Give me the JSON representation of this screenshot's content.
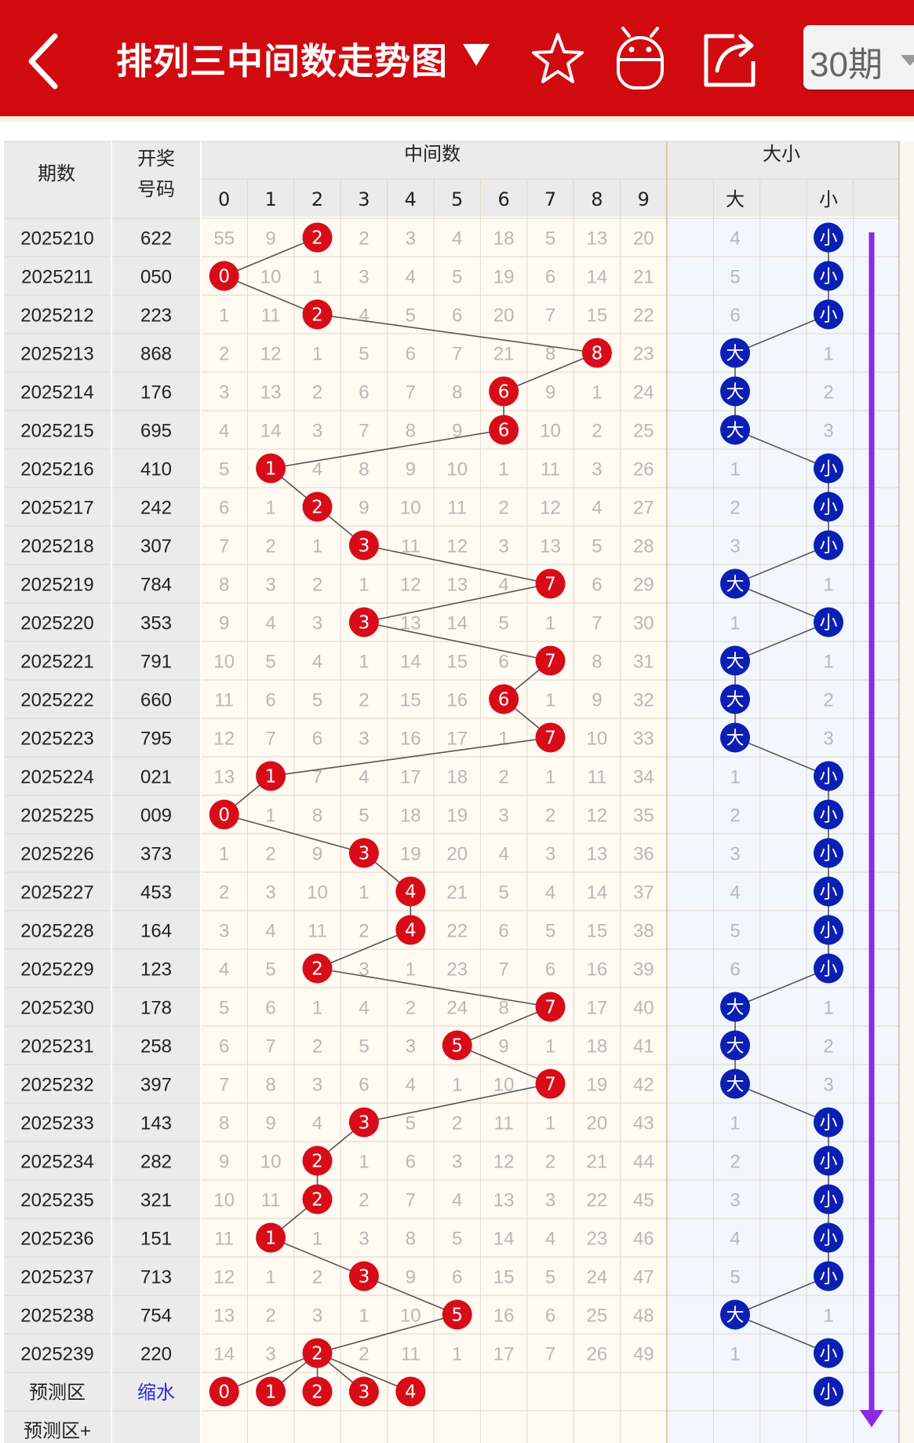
{
  "app": {
    "title": "排列三中间数走势图",
    "period_select": "30期"
  },
  "table_header": {
    "period_label": "期数",
    "draw_label_1": "开奖",
    "draw_label_2": "号码",
    "group_middle": "中间数",
    "group_size": "大小",
    "digit_cols": [
      "0",
      "1",
      "2",
      "3",
      "4",
      "5",
      "6",
      "7",
      "8",
      "9"
    ],
    "size_cols": [
      "大",
      "",
      "小"
    ]
  },
  "colors": {
    "brand_red": "#d10a0f",
    "ball_red": "#d80c18",
    "ball_blue": "#0b1fb5",
    "trend_arrow": "#8a2be2"
  },
  "rows": [
    {
      "period": "2025210",
      "draw": "622",
      "mid": 2,
      "size": "小",
      "digits": [
        "55",
        "9",
        "",
        "2",
        "3",
        "4",
        "18",
        "5",
        "13",
        "20"
      ],
      "big_miss": "4",
      "small_miss": ""
    },
    {
      "period": "2025211",
      "draw": "050",
      "mid": 0,
      "size": "小",
      "digits": [
        "",
        "10",
        "1",
        "3",
        "4",
        "5",
        "19",
        "6",
        "14",
        "21"
      ],
      "big_miss": "5",
      "small_miss": ""
    },
    {
      "period": "2025212",
      "draw": "223",
      "mid": 2,
      "size": "小",
      "digits": [
        "1",
        "11",
        "",
        "4",
        "5",
        "6",
        "20",
        "7",
        "15",
        "22"
      ],
      "big_miss": "6",
      "small_miss": ""
    },
    {
      "period": "2025213",
      "draw": "868",
      "mid": 8,
      "size": "大",
      "digits": [
        "2",
        "12",
        "1",
        "5",
        "6",
        "7",
        "21",
        "8",
        "",
        "23"
      ],
      "big_miss": "",
      "small_miss": "1"
    },
    {
      "period": "2025214",
      "draw": "176",
      "mid": 6,
      "size": "大",
      "digits": [
        "3",
        "13",
        "2",
        "6",
        "7",
        "8",
        "",
        "9",
        "1",
        "24"
      ],
      "big_miss": "",
      "small_miss": "2"
    },
    {
      "period": "2025215",
      "draw": "695",
      "mid": 6,
      "size": "大",
      "digits": [
        "4",
        "14",
        "3",
        "7",
        "8",
        "9",
        "",
        "10",
        "2",
        "25"
      ],
      "big_miss": "",
      "small_miss": "3"
    },
    {
      "period": "2025216",
      "draw": "410",
      "mid": 1,
      "size": "小",
      "digits": [
        "5",
        "",
        "4",
        "8",
        "9",
        "10",
        "1",
        "11",
        "3",
        "26"
      ],
      "big_miss": "1",
      "small_miss": ""
    },
    {
      "period": "2025217",
      "draw": "242",
      "mid": 2,
      "size": "小",
      "digits": [
        "6",
        "1",
        "",
        "9",
        "10",
        "11",
        "2",
        "12",
        "4",
        "27"
      ],
      "big_miss": "2",
      "small_miss": ""
    },
    {
      "period": "2025218",
      "draw": "307",
      "mid": 3,
      "size": "小",
      "digits": [
        "7",
        "2",
        "1",
        "",
        "11",
        "12",
        "3",
        "13",
        "5",
        "28"
      ],
      "big_miss": "3",
      "small_miss": ""
    },
    {
      "period": "2025219",
      "draw": "784",
      "mid": 7,
      "size": "大",
      "digits": [
        "8",
        "3",
        "2",
        "1",
        "12",
        "13",
        "4",
        "",
        "6",
        "29"
      ],
      "big_miss": "",
      "small_miss": "1"
    },
    {
      "period": "2025220",
      "draw": "353",
      "mid": 3,
      "size": "小",
      "digits": [
        "9",
        "4",
        "3",
        "",
        "13",
        "14",
        "5",
        "1",
        "7",
        "30"
      ],
      "big_miss": "1",
      "small_miss": ""
    },
    {
      "period": "2025221",
      "draw": "791",
      "mid": 7,
      "size": "大",
      "digits": [
        "10",
        "5",
        "4",
        "1",
        "14",
        "15",
        "6",
        "",
        "8",
        "31"
      ],
      "big_miss": "",
      "small_miss": "1"
    },
    {
      "period": "2025222",
      "draw": "660",
      "mid": 6,
      "size": "大",
      "digits": [
        "11",
        "6",
        "5",
        "2",
        "15",
        "16",
        "",
        "1",
        "9",
        "32"
      ],
      "big_miss": "",
      "small_miss": "2"
    },
    {
      "period": "2025223",
      "draw": "795",
      "mid": 7,
      "size": "大",
      "digits": [
        "12",
        "7",
        "6",
        "3",
        "16",
        "17",
        "1",
        "",
        "10",
        "33"
      ],
      "big_miss": "",
      "small_miss": "3"
    },
    {
      "period": "2025224",
      "draw": "021",
      "mid": 1,
      "size": "小",
      "digits": [
        "13",
        "",
        "7",
        "4",
        "17",
        "18",
        "2",
        "1",
        "11",
        "34"
      ],
      "big_miss": "1",
      "small_miss": ""
    },
    {
      "period": "2025225",
      "draw": "009",
      "mid": 0,
      "size": "小",
      "digits": [
        "",
        "1",
        "8",
        "5",
        "18",
        "19",
        "3",
        "2",
        "12",
        "35"
      ],
      "big_miss": "2",
      "small_miss": ""
    },
    {
      "period": "2025226",
      "draw": "373",
      "mid": 3,
      "size": "小",
      "digits": [
        "1",
        "2",
        "9",
        "",
        "19",
        "20",
        "4",
        "3",
        "13",
        "36"
      ],
      "big_miss": "3",
      "small_miss": ""
    },
    {
      "period": "2025227",
      "draw": "453",
      "mid": 4,
      "size": "小",
      "digits": [
        "2",
        "3",
        "10",
        "1",
        "",
        "21",
        "5",
        "4",
        "14",
        "37"
      ],
      "big_miss": "4",
      "small_miss": ""
    },
    {
      "period": "2025228",
      "draw": "164",
      "mid": 4,
      "size": "小",
      "digits": [
        "3",
        "4",
        "11",
        "2",
        "",
        "22",
        "6",
        "5",
        "15",
        "38"
      ],
      "big_miss": "5",
      "small_miss": ""
    },
    {
      "period": "2025229",
      "draw": "123",
      "mid": 2,
      "size": "小",
      "digits": [
        "4",
        "5",
        "",
        "3",
        "1",
        "23",
        "7",
        "6",
        "16",
        "39"
      ],
      "big_miss": "6",
      "small_miss": ""
    },
    {
      "period": "2025230",
      "draw": "178",
      "mid": 7,
      "size": "大",
      "digits": [
        "5",
        "6",
        "1",
        "4",
        "2",
        "24",
        "8",
        "",
        "17",
        "40"
      ],
      "big_miss": "",
      "small_miss": "1"
    },
    {
      "period": "2025231",
      "draw": "258",
      "mid": 5,
      "size": "大",
      "digits": [
        "6",
        "7",
        "2",
        "5",
        "3",
        "",
        "9",
        "1",
        "18",
        "41"
      ],
      "big_miss": "",
      "small_miss": "2"
    },
    {
      "period": "2025232",
      "draw": "397",
      "mid": 7,
      "size": "大",
      "digits": [
        "7",
        "8",
        "3",
        "6",
        "4",
        "1",
        "10",
        "",
        "19",
        "42"
      ],
      "big_miss": "",
      "small_miss": "3"
    },
    {
      "period": "2025233",
      "draw": "143",
      "mid": 3,
      "size": "小",
      "digits": [
        "8",
        "9",
        "4",
        "",
        "5",
        "2",
        "11",
        "1",
        "20",
        "43"
      ],
      "big_miss": "1",
      "small_miss": ""
    },
    {
      "period": "2025234",
      "draw": "282",
      "mid": 2,
      "size": "小",
      "digits": [
        "9",
        "10",
        "",
        "1",
        "6",
        "3",
        "12",
        "2",
        "21",
        "44"
      ],
      "big_miss": "2",
      "small_miss": ""
    },
    {
      "period": "2025235",
      "draw": "321",
      "mid": 2,
      "size": "小",
      "digits": [
        "10",
        "11",
        "",
        "2",
        "7",
        "4",
        "13",
        "3",
        "22",
        "45"
      ],
      "big_miss": "3",
      "small_miss": ""
    },
    {
      "period": "2025236",
      "draw": "151",
      "mid": 1,
      "size": "小",
      "digits": [
        "11",
        "",
        "1",
        "3",
        "8",
        "5",
        "14",
        "4",
        "23",
        "46"
      ],
      "big_miss": "4",
      "small_miss": ""
    },
    {
      "period": "2025237",
      "draw": "713",
      "mid": 3,
      "size": "小",
      "digits": [
        "12",
        "1",
        "2",
        "",
        "9",
        "6",
        "15",
        "5",
        "24",
        "47"
      ],
      "big_miss": "5",
      "small_miss": ""
    },
    {
      "period": "2025238",
      "draw": "754",
      "mid": 5,
      "size": "大",
      "digits": [
        "13",
        "2",
        "3",
        "1",
        "10",
        "",
        "16",
        "6",
        "25",
        "48"
      ],
      "big_miss": "",
      "small_miss": "1"
    },
    {
      "period": "2025239",
      "draw": "220",
      "mid": 2,
      "size": "小",
      "digits": [
        "14",
        "3",
        "",
        "2",
        "11",
        "1",
        "17",
        "7",
        "26",
        "49"
      ],
      "big_miss": "1",
      "small_miss": ""
    }
  ],
  "prediction": {
    "label": "预测区",
    "tag": "缩水",
    "balls": [
      "0",
      "1",
      "2",
      "3",
      "4"
    ],
    "size": "小"
  },
  "prediction_plus": {
    "label": "预测区+"
  }
}
